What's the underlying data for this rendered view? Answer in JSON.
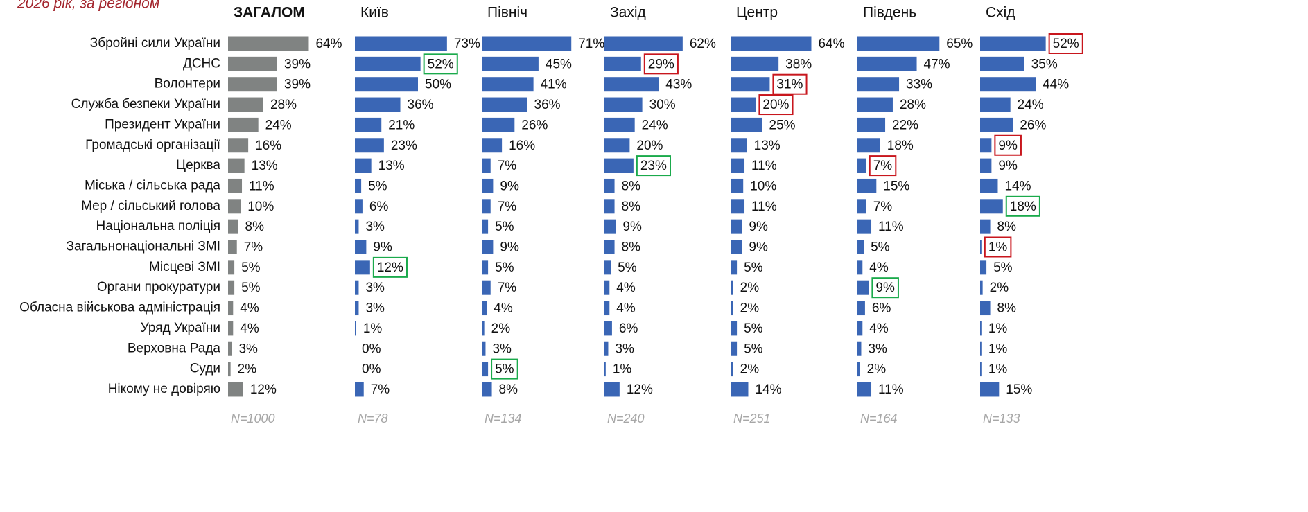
{
  "chart_data": {
    "type": "bar",
    "subtitle": "2026 рік, за регіоном",
    "categories": [
      "Збройні сили України",
      "ДСНС",
      "Волонтери",
      "Служба безпеки України",
      "Президент України",
      "Громадські організації",
      "Церква",
      "Міська / сільська рада",
      "Мер / сільський голова",
      "Національна поліція",
      "Загальнонаціональні ЗМІ",
      "Місцеві ЗМІ",
      "Органи прокуратури",
      "Обласна військова адміністрація",
      "Уряд України",
      "Верховна Рада",
      "Суди",
      "Нікому не довіряю"
    ],
    "series": [
      {
        "name": "ЗАГАЛОМ",
        "sample": "N=1000",
        "color": "#808382",
        "values": [
          64,
          39,
          39,
          28,
          24,
          16,
          13,
          11,
          10,
          8,
          7,
          5,
          5,
          4,
          4,
          3,
          2,
          12
        ],
        "value_labels": [
          "64%",
          "39%",
          "39%",
          "28%",
          "24%",
          "16%",
          "13%",
          "11%",
          "10%",
          "8%",
          "7%",
          "5%",
          "5%",
          "4%",
          "4%",
          "3%",
          "2%",
          "12%"
        ],
        "highlights": []
      },
      {
        "name": "Київ",
        "sample": "N=78",
        "color": "#3a66b5",
        "values": [
          73,
          52,
          50,
          36,
          21,
          23,
          13,
          5,
          6,
          3,
          9,
          12,
          3,
          3,
          1,
          0,
          0,
          7
        ],
        "value_labels": [
          "73%",
          "52%",
          "50%",
          "36%",
          "21%",
          "23%",
          "13%",
          "5%",
          "6%",
          "3%",
          "9%",
          "12%",
          "3%",
          "3%",
          "1%",
          "0%",
          "0%",
          "7%"
        ],
        "highlights": [
          {
            "index": 1,
            "color": "#1aaa4b"
          },
          {
            "index": 11,
            "color": "#1aaa4b"
          }
        ]
      },
      {
        "name": "Північ",
        "sample": "N=134",
        "color": "#3a66b5",
        "values": [
          71,
          45,
          41,
          36,
          26,
          16,
          7,
          9,
          7,
          5,
          9,
          5,
          7,
          4,
          2,
          3,
          5,
          8
        ],
        "value_labels": [
          "71%",
          "45%",
          "41%",
          "36%",
          "26%",
          "16%",
          "7%",
          "9%",
          "7%",
          "5%",
          "9%",
          "5%",
          "7%",
          "4%",
          "2%",
          "3%",
          "5%",
          "8%"
        ],
        "highlights": [
          {
            "index": 16,
            "color": "#1aaa4b"
          }
        ]
      },
      {
        "name": "Захід",
        "sample": "N=240",
        "color": "#3a66b5",
        "values": [
          62,
          29,
          43,
          30,
          24,
          20,
          23,
          8,
          8,
          9,
          8,
          5,
          4,
          4,
          6,
          3,
          1,
          12
        ],
        "value_labels": [
          "62%",
          "29%",
          "43%",
          "30%",
          "24%",
          "20%",
          "23%",
          "8%",
          "8%",
          "9%",
          "8%",
          "5%",
          "4%",
          "4%",
          "6%",
          "3%",
          "1%",
          "12%"
        ],
        "highlights": [
          {
            "index": 1,
            "color": "#c8161d"
          },
          {
            "index": 6,
            "color": "#1aaa4b"
          }
        ]
      },
      {
        "name": "Центр",
        "sample": "N=251",
        "color": "#3a66b5",
        "values": [
          64,
          38,
          31,
          20,
          25,
          13,
          11,
          10,
          11,
          9,
          9,
          5,
          2,
          2,
          5,
          5,
          2,
          14
        ],
        "value_labels": [
          "64%",
          "38%",
          "31%",
          "20%",
          "25%",
          "13%",
          "11%",
          "10%",
          "11%",
          "9%",
          "9%",
          "5%",
          "2%",
          "2%",
          "5%",
          "5%",
          "2%",
          "14%"
        ],
        "highlights": [
          {
            "index": 2,
            "color": "#c8161d"
          },
          {
            "index": 3,
            "color": "#c8161d"
          }
        ]
      },
      {
        "name": "Південь",
        "sample": "N=164",
        "color": "#3a66b5",
        "values": [
          65,
          47,
          33,
          28,
          22,
          18,
          7,
          15,
          7,
          11,
          5,
          4,
          9,
          6,
          4,
          3,
          2,
          11
        ],
        "value_labels": [
          "65%",
          "47%",
          "33%",
          "28%",
          "22%",
          "18%",
          "7%",
          "15%",
          "7%",
          "11%",
          "5%",
          "4%",
          "9%",
          "6%",
          "4%",
          "3%",
          "2%",
          "11%"
        ],
        "highlights": [
          {
            "index": 6,
            "color": "#c8161d"
          },
          {
            "index": 12,
            "color": "#1aaa4b"
          }
        ]
      },
      {
        "name": "Схід",
        "sample": "N=133",
        "color": "#3a66b5",
        "values": [
          52,
          35,
          44,
          24,
          26,
          9,
          9,
          14,
          18,
          8,
          1,
          5,
          2,
          8,
          1,
          1,
          1,
          15
        ],
        "value_labels": [
          "52%",
          "35%",
          "44%",
          "24%",
          "26%",
          "9%",
          "9%",
          "14%",
          "18%",
          "8%",
          "1%",
          "5%",
          "2%",
          "8%",
          "1%",
          "1%",
          "1%",
          "15%"
        ],
        "highlights": [
          {
            "index": 0,
            "color": "#c8161d"
          },
          {
            "index": 5,
            "color": "#c8161d"
          },
          {
            "index": 8,
            "color": "#1aaa4b"
          },
          {
            "index": 10,
            "color": "#c8161d"
          }
        ]
      }
    ]
  }
}
